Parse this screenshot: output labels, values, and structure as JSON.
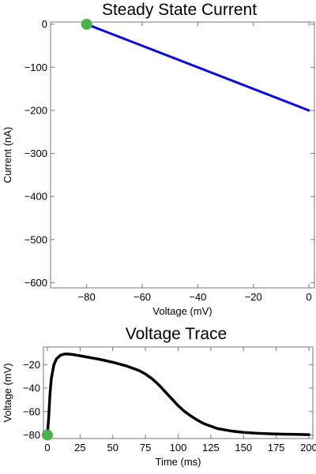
{
  "chart_data": [
    {
      "type": "line",
      "title": "Steady State Current",
      "xlabel": "Voltage (mV)",
      "ylabel": "Current (nA)",
      "xlim": [
        -93,
        2
      ],
      "ylim": [
        -612,
        5
      ],
      "x_ticks": [
        -80,
        -60,
        -40,
        -20,
        0
      ],
      "y_ticks": [
        0,
        -100,
        -200,
        -300,
        -400,
        -500,
        -600
      ],
      "x_tick_labels": [
        "−80",
        "−60",
        "−40",
        "−20",
        "0"
      ],
      "y_tick_labels": [
        "0",
        "−100",
        "−200",
        "−300",
        "−400",
        "−500",
        "−600"
      ],
      "series": [
        {
          "color": "#0a0adc",
          "x": [
            -80,
            0
          ],
          "y": [
            0,
            -200
          ]
        }
      ],
      "marker": {
        "x": -80,
        "y": 0,
        "color": "#4caf50"
      },
      "grid": false
    },
    {
      "type": "line",
      "title": "Voltage Trace",
      "xlabel": "Time (ms)",
      "ylabel": "Voltage (mV)",
      "xlim": [
        -3,
        203
      ],
      "ylim": [
        -83,
        -5
      ],
      "x_ticks": [
        0,
        25,
        50,
        75,
        100,
        125,
        150,
        175,
        200
      ],
      "y_ticks": [
        -20,
        -40,
        -60,
        -80
      ],
      "x_tick_labels": [
        "0",
        "25",
        "50",
        "75",
        "100",
        "125",
        "150",
        "175",
        "200"
      ],
      "y_tick_labels": [
        "−20",
        "−40",
        "−60",
        "−80"
      ],
      "series": [
        {
          "color": "#000000",
          "x": [
            0,
            1,
            2,
            3,
            5,
            7,
            10,
            13,
            16,
            20,
            25,
            30,
            40,
            50,
            60,
            70,
            75,
            80,
            85,
            90,
            95,
            100,
            105,
            110,
            115,
            120,
            125,
            130,
            140,
            150,
            160,
            170,
            180,
            190,
            200
          ],
          "y": [
            -80,
            -65,
            -45,
            -32,
            -20,
            -15,
            -12,
            -11,
            -11,
            -11.5,
            -12.5,
            -13.5,
            -15.5,
            -18,
            -21,
            -25,
            -28,
            -32,
            -37,
            -43,
            -49,
            -55,
            -60,
            -64,
            -67.5,
            -70.5,
            -72.5,
            -74.5,
            -76.5,
            -77.8,
            -78.5,
            -79,
            -79.3,
            -79.5,
            -79.7
          ]
        }
      ],
      "marker": {
        "x": 0,
        "y": -80,
        "color": "#4caf50"
      },
      "grid": false
    }
  ]
}
